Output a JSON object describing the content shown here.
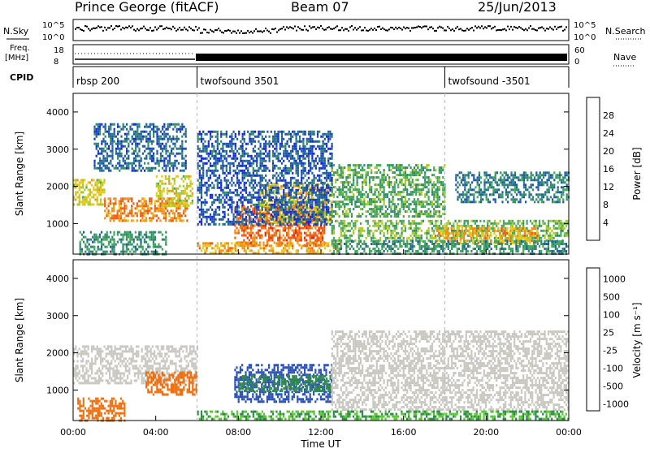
{
  "header": {
    "station": "Prince George (fitACF)",
    "beam": "Beam 07",
    "date": "25/Jun/2013"
  },
  "strips": {
    "nsky_label": "N.Sky",
    "nsearch_label": "N.Search",
    "noise_ticks": [
      "10^5",
      "10^0"
    ],
    "freq_label": [
      "Freq.",
      "[MHz]"
    ],
    "freq_ticks": [
      "18",
      "8"
    ],
    "nave_label": "Nave",
    "nave_ticks": [
      "60",
      "0"
    ],
    "cpid_label": "CPID",
    "programs": [
      {
        "name": "rbsp 200",
        "start": 0
      },
      {
        "name": "twofsound 3501",
        "start": 6
      },
      {
        "name": "twofsound -3501",
        "start": 18
      }
    ]
  },
  "chart_data": [
    {
      "type": "heatmap",
      "title": "",
      "parameter": "Power",
      "ylabel": "Slant Range [km]",
      "xlabel": "",
      "xlim": [
        0,
        24
      ],
      "ylim": [
        180,
        4500
      ],
      "y_ticks": [
        1000,
        2000,
        3000,
        4000
      ],
      "colorbar": {
        "label": "Power [dB]",
        "range": [
          0,
          32
        ],
        "ticks": [
          4,
          8,
          12,
          16,
          20,
          24,
          28
        ],
        "colors": [
          "#1428e0",
          "#1e5aa8",
          "#2f8a6a",
          "#42a85a",
          "#a8c828",
          "#e8c818",
          "#f09018",
          "#ef5a14",
          "#e42814"
        ]
      },
      "echo_regions": [
        {
          "t0": 0.0,
          "t1": 1.5,
          "r0": 1500,
          "r1": 2200,
          "value": 18
        },
        {
          "t0": 1.5,
          "t1": 5.5,
          "r0": 1100,
          "r1": 1700,
          "value": 24
        },
        {
          "t0": 4.0,
          "t1": 5.8,
          "r0": 1500,
          "r1": 2300,
          "value": 18
        },
        {
          "t0": 0.3,
          "t1": 4.5,
          "r0": 200,
          "r1": 800,
          "value": 10
        },
        {
          "t0": 1.0,
          "t1": 5.5,
          "r0": 2400,
          "r1": 3700,
          "value": 6
        },
        {
          "t0": 7.8,
          "t1": 12.2,
          "r0": 400,
          "r1": 1500,
          "value": 26
        },
        {
          "t0": 9.0,
          "t1": 12.5,
          "r0": 1000,
          "r1": 2100,
          "value": 20
        },
        {
          "t0": 6.0,
          "t1": 13.0,
          "r0": 200,
          "r1": 500,
          "value": 22
        },
        {
          "t0": 6.0,
          "t1": 12.5,
          "r0": 1000,
          "r1": 3500,
          "value": 5
        },
        {
          "t0": 12.5,
          "t1": 18.0,
          "r0": 1200,
          "r1": 2600,
          "value": 12
        },
        {
          "t0": 12.5,
          "t1": 24.0,
          "r0": 550,
          "r1": 1100,
          "value": 14
        },
        {
          "t0": 17.5,
          "t1": 22.5,
          "r0": 500,
          "r1": 900,
          "value": 22
        },
        {
          "t0": 18.5,
          "t1": 24.0,
          "r0": 1600,
          "r1": 2400,
          "value": 8
        },
        {
          "t0": 12.5,
          "t1": 24.0,
          "r0": 200,
          "r1": 550,
          "value": 10
        }
      ]
    },
    {
      "type": "heatmap",
      "title": "",
      "parameter": "Velocity",
      "ylabel": "Slant Range [km]",
      "xlabel": "Time UT",
      "xlim": [
        0,
        24
      ],
      "ylim": [
        180,
        4500
      ],
      "y_ticks": [
        1000,
        2000,
        3000,
        4000
      ],
      "x_ticks": [
        "00:00",
        "04:00",
        "08:00",
        "12:00",
        "16:00",
        "20:00",
        "00:00"
      ],
      "colorbar": {
        "label": "Velocity [m s⁻¹]",
        "tick_labels": [
          "1000",
          "500",
          "100",
          "25",
          "-25",
          "-100",
          "-500",
          "-1000"
        ],
        "colors": [
          "#1428e0",
          "#2850b8",
          "#2e8a4a",
          "#58c830",
          "#c8c8c0",
          "#f0a020",
          "#f07010",
          "#e42814"
        ]
      },
      "echo_regions": [
        {
          "t0": 0.0,
          "t1": 6.0,
          "r0": 1200,
          "r1": 2200,
          "value": -5
        },
        {
          "t0": 0.2,
          "t1": 2.5,
          "r0": 200,
          "r1": 800,
          "value": -300
        },
        {
          "t0": 3.5,
          "t1": 6.0,
          "r0": 900,
          "r1": 1500,
          "value": -300
        },
        {
          "t0": 7.8,
          "t1": 12.5,
          "r0": 700,
          "r1": 1700,
          "value": 300
        },
        {
          "t0": 8.0,
          "t1": 12.5,
          "r0": 1000,
          "r1": 1400,
          "value": 80
        },
        {
          "t0": 12.5,
          "t1": 24.0,
          "r0": 500,
          "r1": 2600,
          "value": 0
        },
        {
          "t0": 6.0,
          "t1": 24.0,
          "r0": 200,
          "r1": 450,
          "value": 60
        }
      ]
    }
  ]
}
